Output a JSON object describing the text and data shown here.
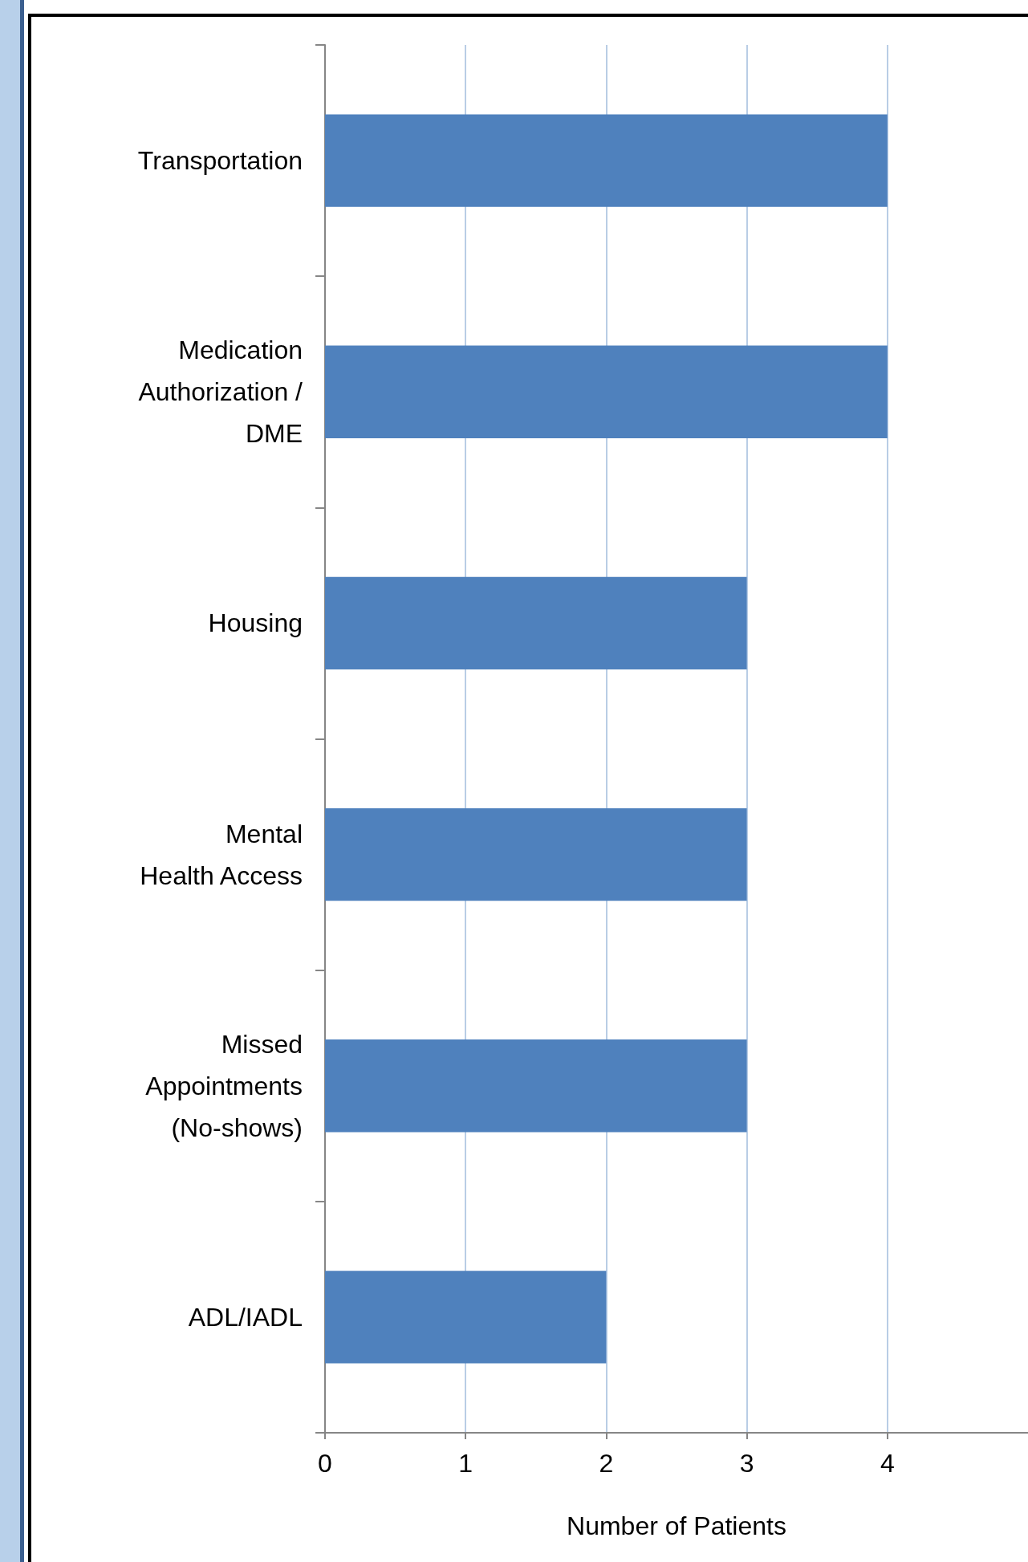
{
  "chart_data": {
    "type": "bar",
    "orientation": "horizontal",
    "xlabel": "Number of Patients",
    "categories": [
      "Transportation",
      "Medication\nAuthorization /\nDME",
      "Housing",
      "Mental\nHealth Access",
      "Missed\nAppointments\n(No-shows)",
      "ADL/IADL"
    ],
    "values": [
      4,
      4,
      3,
      3,
      3,
      2
    ],
    "color": "#4f81bd",
    "xlim": [
      0,
      5
    ],
    "xticks": [
      0,
      1,
      2,
      3,
      4
    ],
    "grid": "x"
  }
}
